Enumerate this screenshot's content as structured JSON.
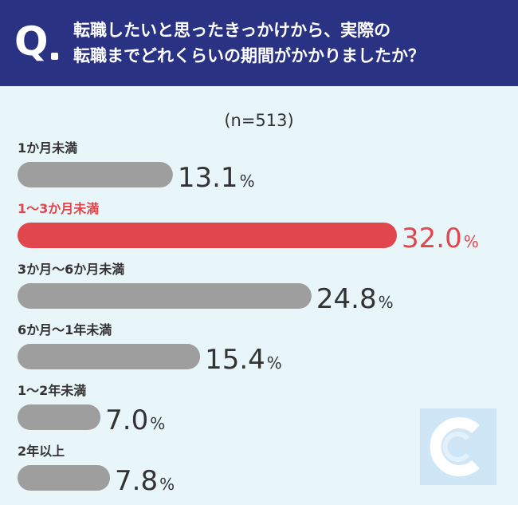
{
  "question": {
    "mark": "Q",
    "line1": "転職したいと思ったきっかけから、実際の",
    "line2": "転職までどれくらいの期間がかかりましたか？"
  },
  "sample_label": "(n=513)",
  "colors": {
    "header": "#2a3284",
    "background": "#e8f6fa",
    "bar_default": "#9e9e9e",
    "bar_highlight": "#e0464b",
    "text_default": "#333333",
    "text_highlight": "#e0464b"
  },
  "chart_data": {
    "type": "bar",
    "orientation": "horizontal",
    "unit": "%",
    "categories": [
      "1か月未満",
      "1〜3か月未満",
      "3か月〜6か月未満",
      "6か月〜1年未満",
      "1〜2年未満",
      "2年以上"
    ],
    "values": [
      13.1,
      32.0,
      24.8,
      15.4,
      7.0,
      7.8
    ],
    "value_labels": [
      "13.1",
      "32.0",
      "24.8",
      "15.4",
      "7.0",
      "7.8"
    ],
    "highlight_index": 1,
    "xlim": [
      0,
      32.0
    ]
  }
}
